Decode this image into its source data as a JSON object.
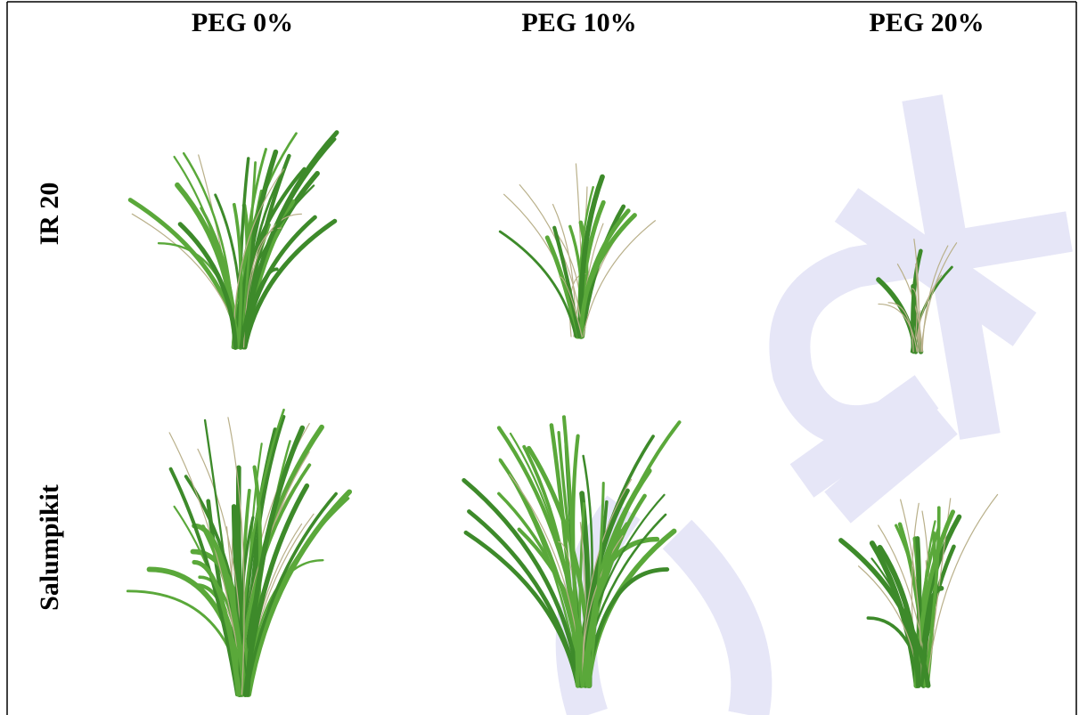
{
  "columns": [
    "PEG 0%",
    "PEG 10%",
    "PEG 20%"
  ],
  "rows": [
    "IR 20",
    "Salumpikit"
  ]
}
